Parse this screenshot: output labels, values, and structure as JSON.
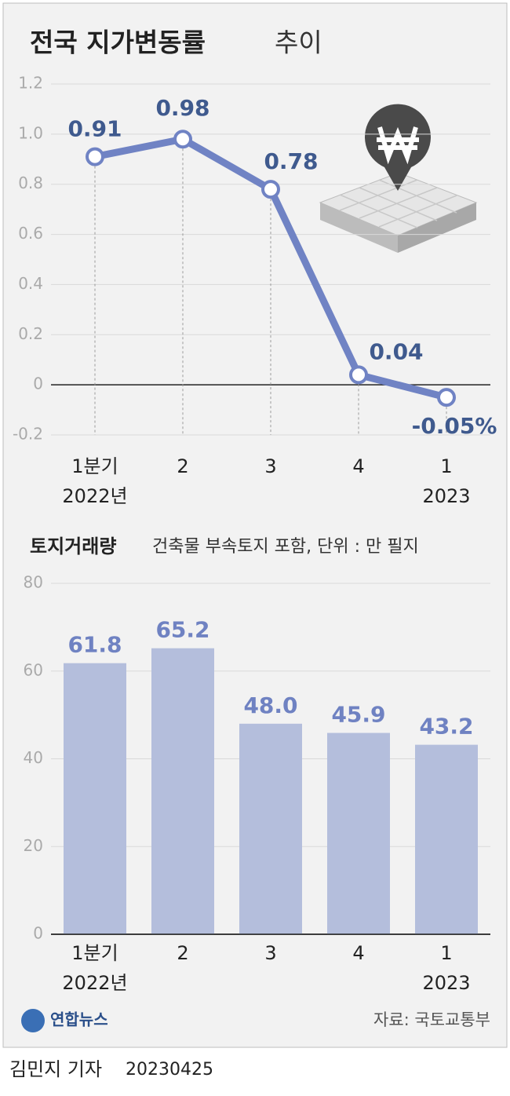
{
  "chart_data": [
    {
      "type": "line",
      "title": "전국 지가변동률",
      "title_suffix": "추이",
      "categories": [
        "1분기",
        "2",
        "3",
        "4",
        "1"
      ],
      "category_years": [
        "2022년",
        null,
        null,
        null,
        "2023"
      ],
      "values": [
        0.91,
        0.98,
        0.78,
        0.04,
        -0.05
      ],
      "value_labels": [
        "0.91",
        "0.98",
        "0.78",
        "0.04",
        "-0.05%"
      ],
      "color": "#7083c4",
      "ylim": [
        -0.2,
        1.2
      ],
      "yticks": [
        -0.2,
        0,
        0.2,
        0.4,
        0.6,
        0.8,
        {
          "value": 1,
          "label": "1.0"
        },
        1.2
      ],
      "grid": true
    },
    {
      "type": "bar",
      "title": "토지거래량",
      "subtitle": "건축물 부속토지 포함, 단위 : 만 필지",
      "categories": [
        "1분기",
        "2",
        "3",
        "4",
        "1"
      ],
      "category_years": [
        "2022년",
        null,
        null,
        null,
        "2023"
      ],
      "values": [
        61.8,
        65.2,
        48.0,
        45.9,
        43.2
      ],
      "value_labels": [
        "61.8",
        "65.2",
        "48.0",
        "45.9",
        "43.2"
      ],
      "color": "#b4bedc",
      "ylim": [
        0,
        80
      ],
      "yticks": [
        0,
        20,
        40,
        60,
        80
      ],
      "grid": true
    }
  ],
  "footer": {
    "logo": "연합뉴스",
    "source": "자료: 국토교통부",
    "byline": "김민지 기자",
    "date": "20230425"
  }
}
